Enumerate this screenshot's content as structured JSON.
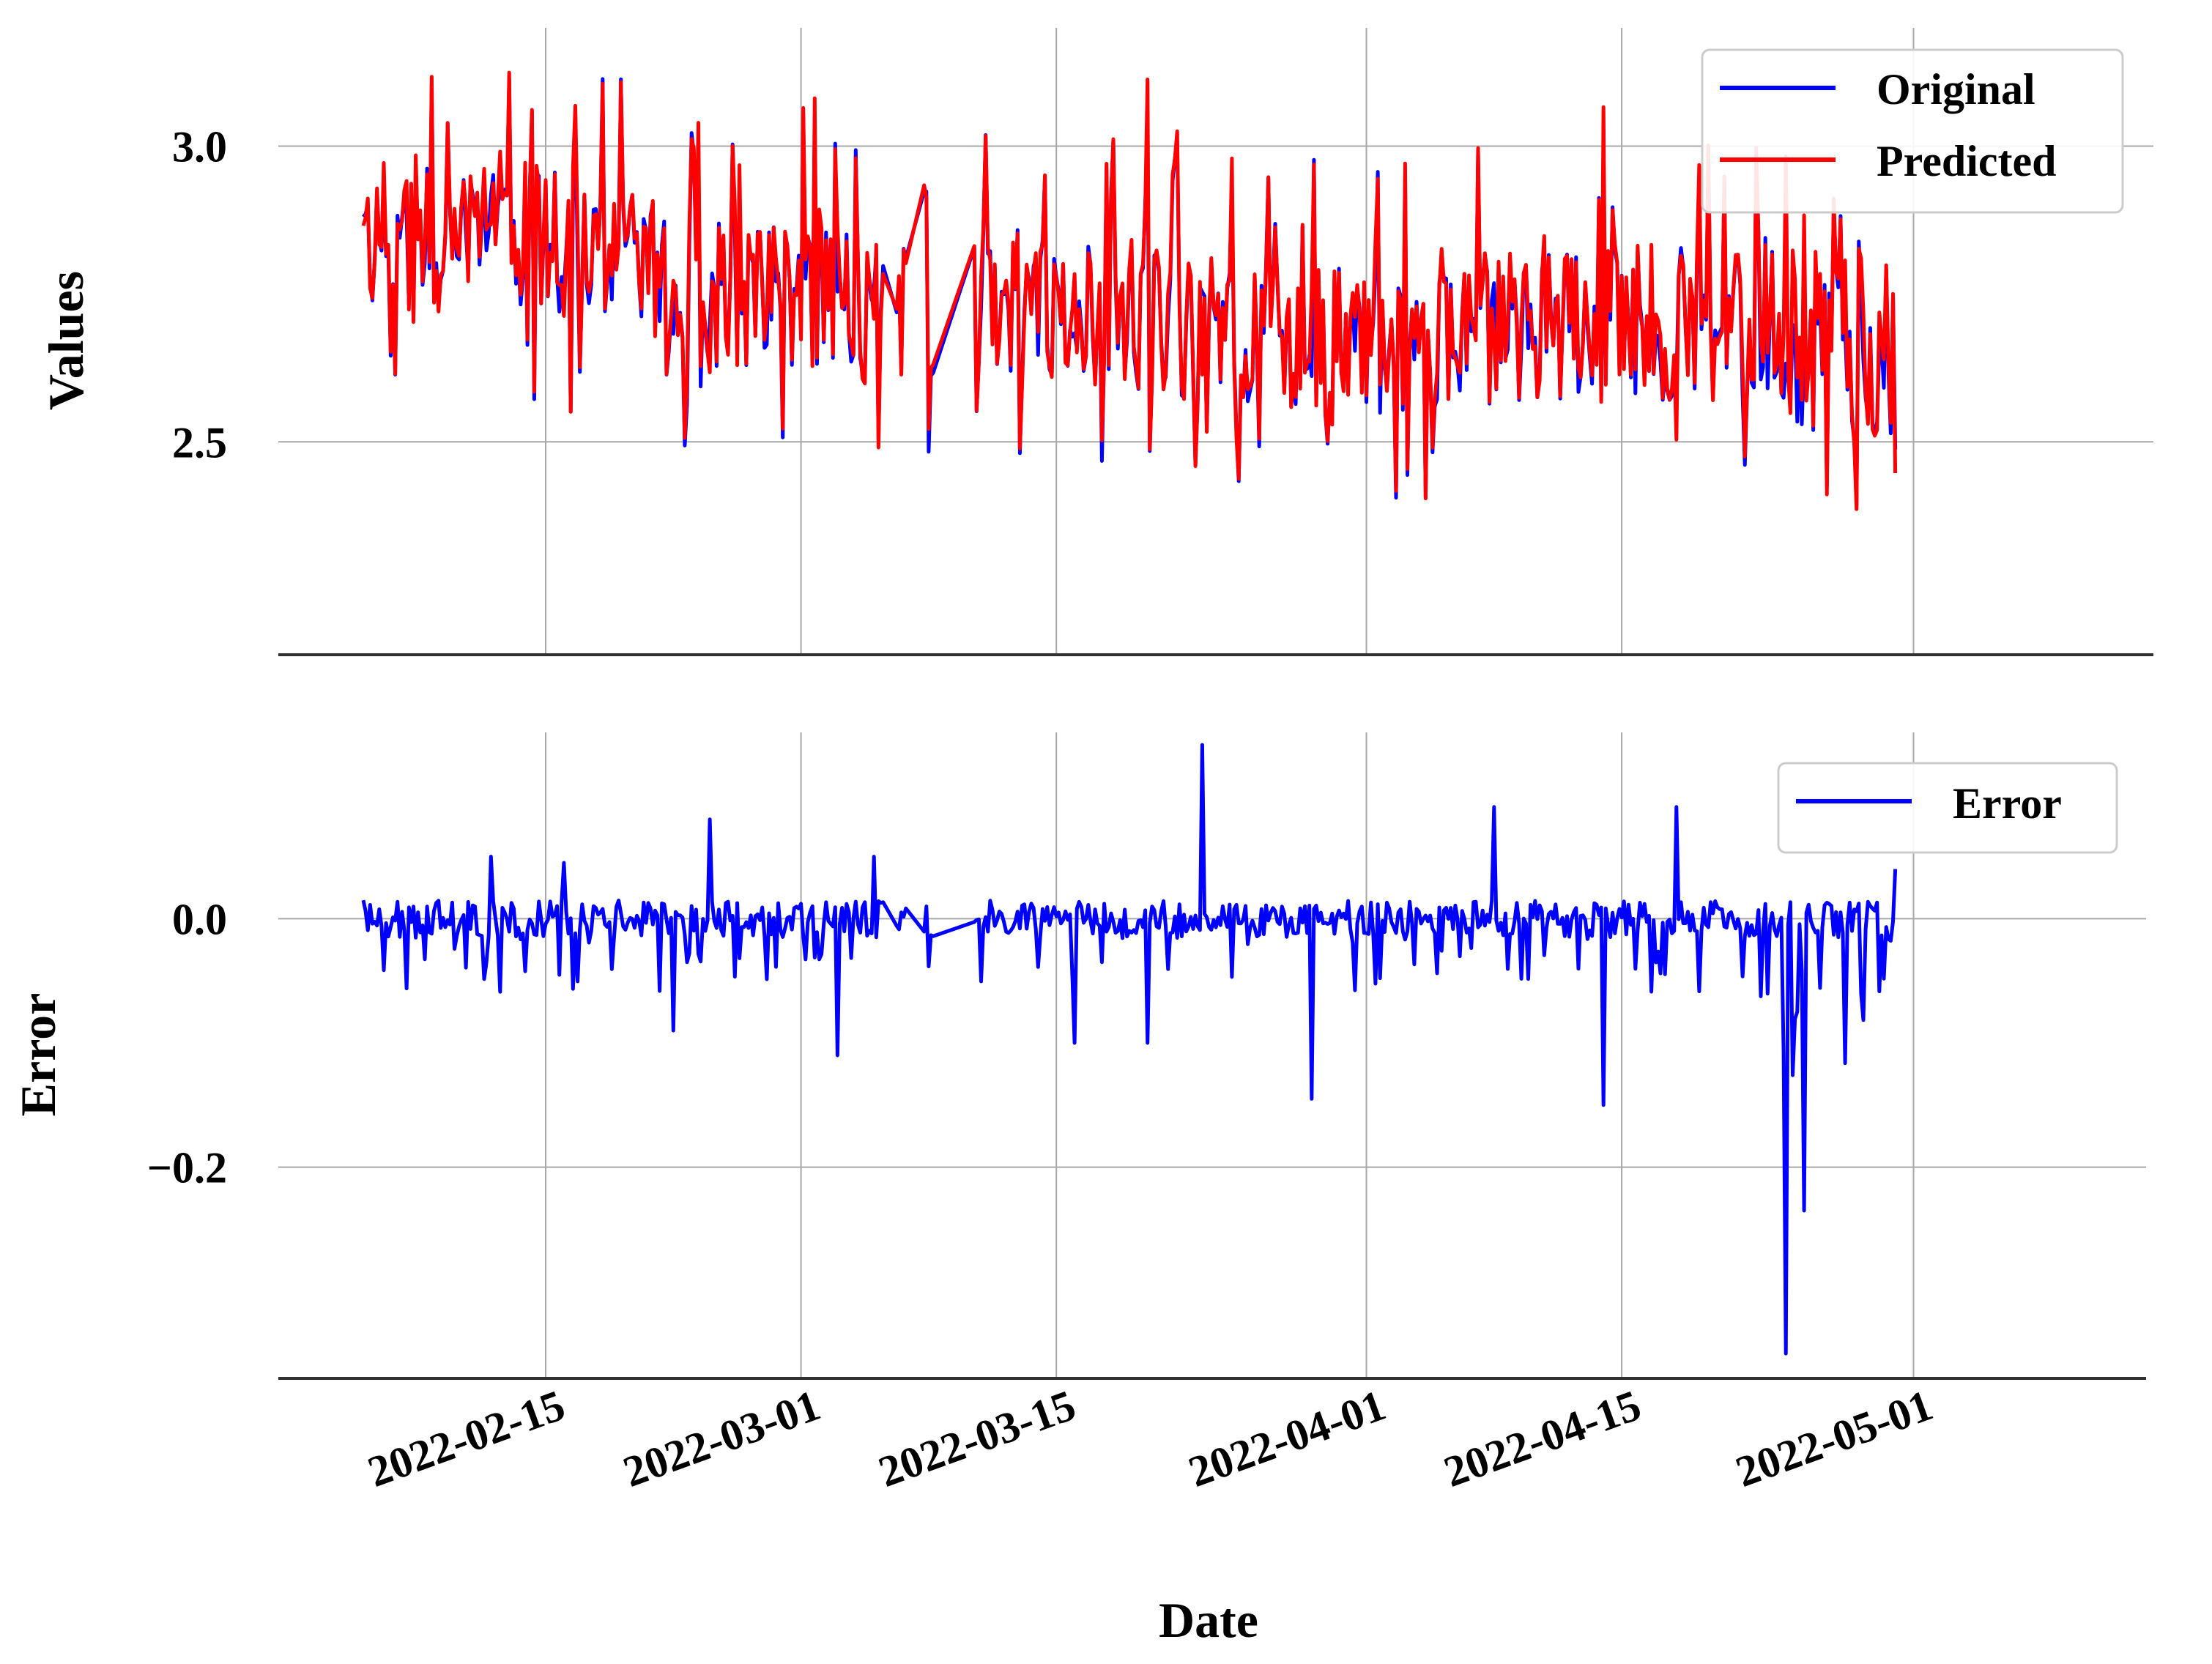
{
  "chart_data": [
    {
      "type": "line",
      "ylabel": "Values",
      "yticks": [
        2.5,
        3.0
      ],
      "ylim": [
        2.14,
        3.2
      ],
      "x_range": [
        "2022-02-05",
        "2022-04-30"
      ],
      "xticks": [
        "2022-02-15",
        "2022-03-01",
        "2022-03-15",
        "2022-04-01",
        "2022-04-15",
        "2022-05-01"
      ],
      "grid": true,
      "legend_position": "top-right",
      "series": [
        {
          "name": "Original",
          "color": "#0000ff",
          "mean_trend": [
            [
              0,
              2.84
            ],
            [
              10,
              2.84
            ],
            [
              20,
              2.74
            ],
            [
              30,
              2.74
            ],
            [
              40,
              2.72
            ],
            [
              52,
              2.66
            ],
            [
              66,
              2.7
            ],
            [
              76,
              2.7
            ],
            [
              85,
              2.62
            ]
          ]
        },
        {
          "name": "Predicted",
          "color": "#ff0000",
          "mean_trend": [
            [
              0,
              2.85
            ],
            [
              10,
              2.85
            ],
            [
              20,
              2.76
            ],
            [
              30,
              2.76
            ],
            [
              40,
              2.74
            ],
            [
              52,
              2.68
            ],
            [
              66,
              2.72
            ],
            [
              76,
              2.72
            ],
            [
              85,
              2.65
            ]
          ]
        }
      ]
    },
    {
      "type": "line",
      "ylabel": "Error",
      "yticks": [
        -0.2,
        0.0
      ],
      "ylim": [
        -0.37,
        0.15
      ],
      "xlabel": "Date",
      "grid": true,
      "legend_position": "top-right",
      "series": [
        {
          "name": "Error",
          "color": "#0000ff",
          "notable_points": [
            {
              "date": "2022-02-12",
              "value": 0.05
            },
            {
              "date": "2022-02-16",
              "value": 0.045
            },
            {
              "date": "2022-02-22",
              "value": -0.09
            },
            {
              "date": "2022-02-24",
              "value": 0.08
            },
            {
              "date": "2022-03-03",
              "value": -0.11
            },
            {
              "date": "2022-03-05",
              "value": 0.05
            },
            {
              "date": "2022-03-16",
              "value": -0.1
            },
            {
              "date": "2022-03-20",
              "value": -0.1
            },
            {
              "date": "2022-03-23",
              "value": 0.14
            },
            {
              "date": "2022-03-29",
              "value": -0.145
            },
            {
              "date": "2022-04-08",
              "value": 0.09
            },
            {
              "date": "2022-04-14",
              "value": -0.15
            },
            {
              "date": "2022-04-18",
              "value": 0.09
            },
            {
              "date": "2022-04-24",
              "value": -0.35
            },
            {
              "date": "2022-04-25",
              "value": -0.235
            },
            {
              "date": "2022-04-30",
              "value": 0.04
            }
          ]
        }
      ]
    }
  ]
}
